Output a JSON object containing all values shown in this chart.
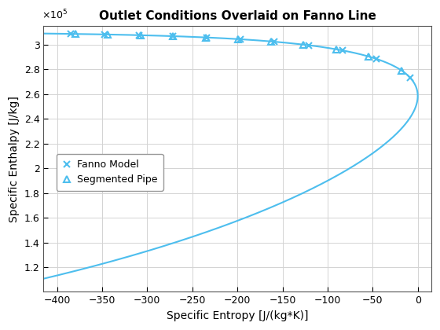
{
  "title": "Outlet Conditions Overlaid on Fanno Line",
  "xlabel": "Specific Entropy [J/(kg*K)]",
  "ylabel": "Specific Enthalpy [J/kg]",
  "line_color": "#4DBEEE",
  "xlim": [
    -415,
    15
  ],
  "ylim": [
    100000.0,
    315000.0
  ],
  "xticks": [
    -400,
    -350,
    -300,
    -250,
    -200,
    -150,
    -100,
    -50,
    0
  ],
  "yticks": [
    120000.0,
    140000.0,
    160000.0,
    180000.0,
    200000.0,
    220000.0,
    240000.0,
    260000.0,
    280000.0,
    300000.0
  ],
  "grid_color": "#D3D3D3",
  "bg_color": "#FFFFFF"
}
